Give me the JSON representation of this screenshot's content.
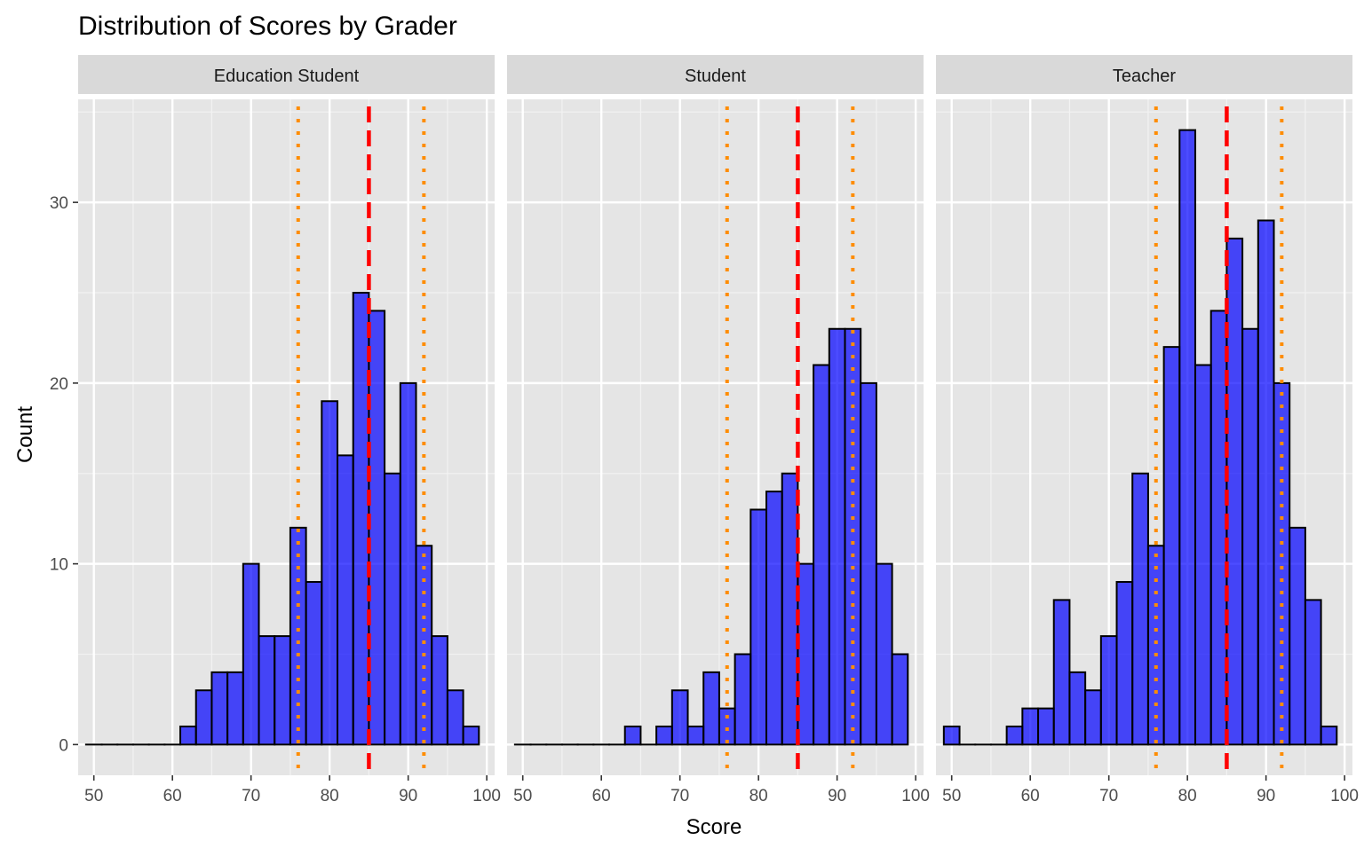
{
  "chart_data": {
    "type": "bar",
    "title": "Distribution of Scores by Grader",
    "xlabel": "Score",
    "ylabel": "Count",
    "xlim": [
      48,
      101
    ],
    "ylim": [
      -1.7,
      35.7
    ],
    "x_ticks": [
      50,
      60,
      70,
      80,
      90,
      100
    ],
    "y_ticks": [
      0,
      10,
      20,
      30
    ],
    "bin_width": 2,
    "bin_start": 49,
    "bar_fill": "#0000ff",
    "bar_fill_opacity": 0.7,
    "bar_outline": "#000000",
    "panel_background": "#e5e5e5",
    "strip_background": "#d9d9d9",
    "grid": true,
    "reference_lines": [
      {
        "value": 85,
        "style": "dashed",
        "color": "#ff0000"
      },
      {
        "value": 76,
        "style": "dotted",
        "color": "#ff8c00"
      },
      {
        "value": 92,
        "style": "dotted",
        "color": "#ff8c00"
      }
    ],
    "facets": [
      {
        "name": "Education Student",
        "bin_centers": [
          50,
          52,
          54,
          56,
          58,
          60,
          62,
          64,
          66,
          68,
          70,
          72,
          74,
          76,
          78,
          80,
          82,
          84,
          86,
          88,
          90,
          92,
          94,
          96,
          98
        ],
        "counts": [
          0,
          0,
          0,
          0,
          0,
          0,
          1,
          3,
          4,
          4,
          10,
          6,
          6,
          12,
          9,
          19,
          16,
          25,
          24,
          15,
          20,
          11,
          6,
          3,
          1
        ]
      },
      {
        "name": "Student",
        "bin_centers": [
          50,
          52,
          54,
          56,
          58,
          60,
          62,
          64,
          66,
          68,
          70,
          72,
          74,
          76,
          78,
          80,
          82,
          84,
          86,
          88,
          90,
          92,
          94,
          96,
          98
        ],
        "counts": [
          0,
          0,
          0,
          0,
          0,
          0,
          0,
          1,
          0,
          1,
          3,
          1,
          4,
          2,
          5,
          13,
          14,
          15,
          10,
          21,
          23,
          23,
          20,
          10,
          5
        ]
      },
      {
        "name": "Teacher",
        "bin_centers": [
          50,
          52,
          54,
          56,
          58,
          60,
          62,
          64,
          66,
          68,
          70,
          72,
          74,
          76,
          78,
          80,
          82,
          84,
          86,
          88,
          90,
          92,
          94,
          96,
          98
        ],
        "counts": [
          1,
          0,
          0,
          0,
          1,
          2,
          2,
          8,
          4,
          3,
          6,
          9,
          15,
          11,
          22,
          34,
          21,
          24,
          28,
          23,
          29,
          20,
          12,
          8,
          1
        ]
      }
    ]
  }
}
